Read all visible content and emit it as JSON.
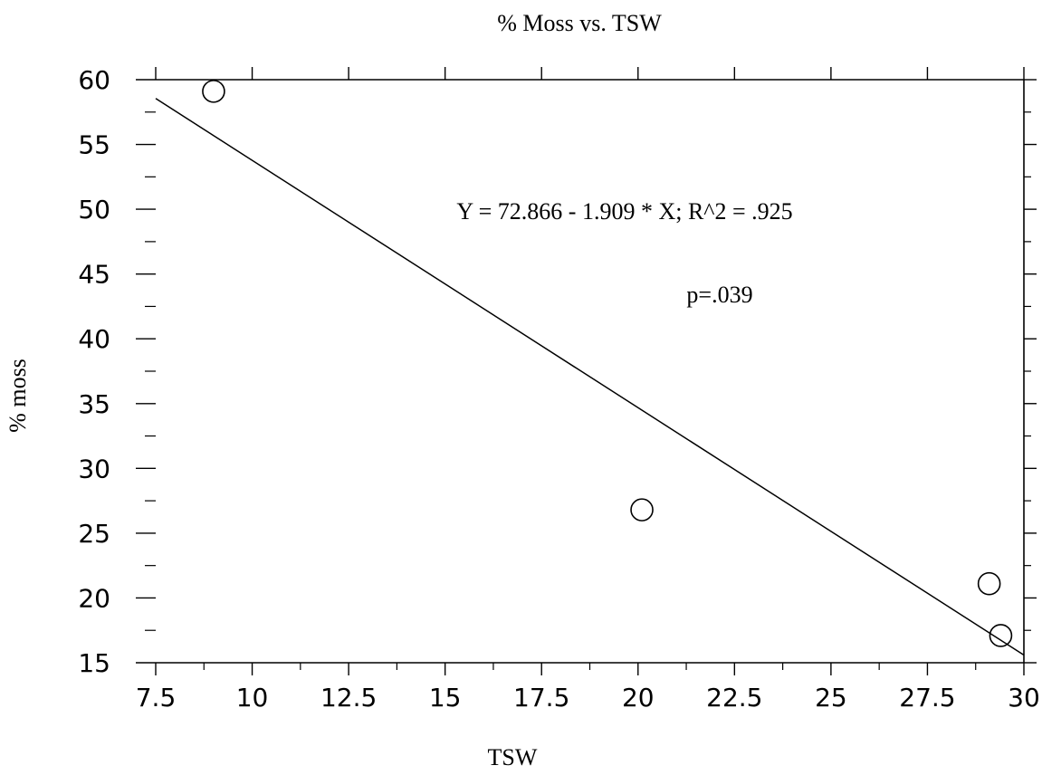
{
  "chart_data": {
    "type": "scatter",
    "title": "% Moss vs. TSW",
    "xlabel": "TSW",
    "ylabel": "% moss",
    "xlim": [
      7.5,
      30
    ],
    "ylim": [
      15,
      60
    ],
    "x_ticks": [
      "7.5",
      "10",
      "12.5",
      "15",
      "17.5",
      "20",
      "22.5",
      "25",
      "27.5",
      "30"
    ],
    "y_ticks": [
      "15",
      "20",
      "25",
      "30",
      "35",
      "40",
      "45",
      "50",
      "55",
      "60"
    ],
    "points": [
      {
        "x": 9.0,
        "y": 59.1
      },
      {
        "x": 20.1,
        "y": 26.8
      },
      {
        "x": 29.1,
        "y": 21.1
      },
      {
        "x": 29.4,
        "y": 17.1
      }
    ],
    "regression": {
      "intercept": 72.866,
      "slope": -1.909
    },
    "annotations": {
      "equation": "Y = 72.866 - 1.909 * X; R^2 = .925",
      "p_value": "p=.039"
    },
    "grid": false,
    "legend": false
  }
}
